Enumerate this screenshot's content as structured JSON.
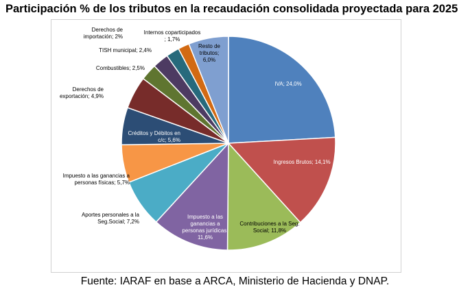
{
  "title": "Participación % de los tributos en la recaudación consolidada proyectada para 2025",
  "source": "Fuente: IARAF en base a ARCA, Ministerio de Hacienda y DNAP.",
  "chart_data": {
    "type": "pie",
    "title": "Participación % de los tributos en la recaudación consolidada proyectada para 2025",
    "slices": [
      {
        "label": "IVA",
        "value": 24.0,
        "text": [
          "IVA; 24,0%"
        ],
        "color": "#4f81bd",
        "text_color": "#ffffff"
      },
      {
        "label": "Ingresos Brutos",
        "value": 14.1,
        "text": [
          "Ingresos Brutos; 14,1%"
        ],
        "color": "#c0504d",
        "text_color": "#ffffff"
      },
      {
        "label": "Contribuciones a la Seg. Social",
        "value": 11.8,
        "text": [
          "Contribuciones a la Seg.",
          "Social; 11,8%"
        ],
        "color": "#9bbb59",
        "text_color": "#000000"
      },
      {
        "label": "Impuesto a las ganancias a personas jurídicas",
        "value": 11.6,
        "text": [
          "Impuesto a las",
          "ganancias a",
          "personas jurídicas;",
          "11,6%"
        ],
        "color": "#8064a2",
        "text_color": "#ffffff"
      },
      {
        "label": "Aportes personales a la Seg.Social",
        "value": 7.2,
        "text": [
          "Aportes personales a la",
          "Seg.Social; 7,2%"
        ],
        "color": "#4bacc6",
        "text_color": "#000000"
      },
      {
        "label": "Impuesto a las ganancias a personas físicas",
        "value": 5.7,
        "text": [
          "Impuesto a las ganancias a",
          "personas físicas; 5,7%"
        ],
        "color": "#f79646",
        "text_color": "#000000"
      },
      {
        "label": "Créditos y Débitos en c/c",
        "value": 5.6,
        "text": [
          "Créditos y Débitos en",
          "c/c; 5,6%"
        ],
        "color": "#2c4d75",
        "text_color": "#ffffff"
      },
      {
        "label": "Derechos de exportación",
        "value": 4.9,
        "text": [
          "Derechos de",
          "exportación; 4,9%"
        ],
        "color": "#772c2a",
        "text_color": "#000000"
      },
      {
        "label": "Combustibles",
        "value": 2.5,
        "text": [
          "Combustibles; 2,5%"
        ],
        "color": "#5f7530",
        "text_color": "#000000"
      },
      {
        "label": "TISH municipal",
        "value": 2.4,
        "text": [
          "TISH municipal; 2,4%"
        ],
        "color": "#4d3b62",
        "text_color": "#000000"
      },
      {
        "label": "Derechos de importación",
        "value": 2.0,
        "text": [
          "Derechos de",
          "importación; 2%"
        ],
        "color": "#276a7c",
        "text_color": "#000000"
      },
      {
        "label": "Internos coparticipados",
        "value": 1.7,
        "text": [
          "Internos coparticipados",
          "; 1,7%"
        ],
        "color": "#d26a13",
        "text_color": "#000000"
      },
      {
        "label": "Resto de tributos",
        "value": 6.0,
        "text": [
          "Resto de",
          "tributos;",
          "6,0%"
        ],
        "color": "#7f9fd0",
        "text_color": "#000000"
      }
    ]
  }
}
